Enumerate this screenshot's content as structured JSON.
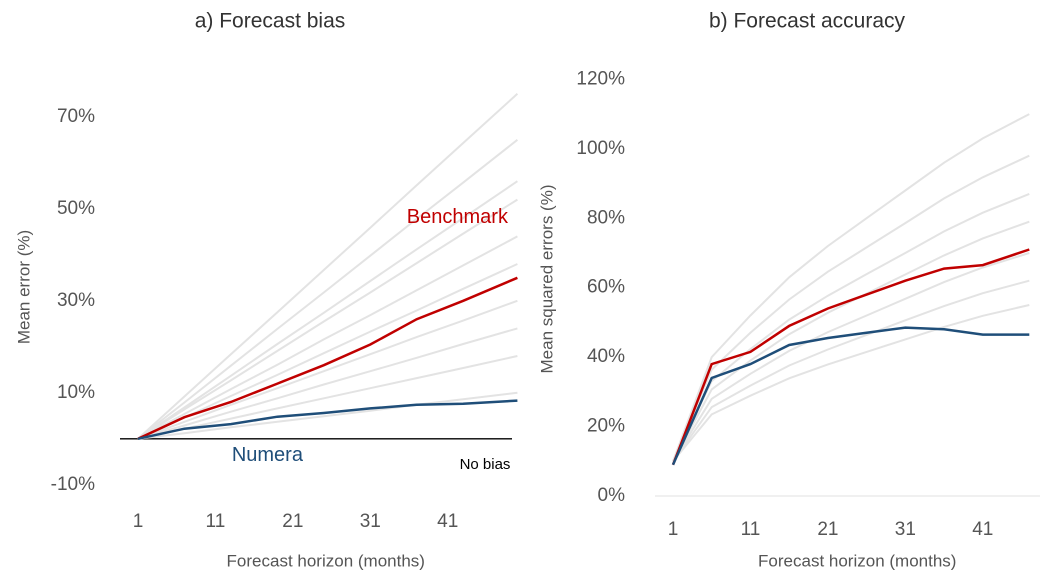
{
  "chart_data": [
    {
      "type": "line",
      "title": "a) Forecast bias",
      "xlabel": "Forecast horizon (months)",
      "ylabel": "Mean error (%)",
      "x": [
        1,
        7,
        13,
        19,
        25,
        31,
        37,
        43,
        50
      ],
      "xlim": [
        -1,
        51.5
      ],
      "xticks": [
        1,
        11,
        21,
        31,
        41
      ],
      "ylim": [
        -12,
        78
      ],
      "yticks": [
        {
          "value": -10,
          "label": "-10%"
        },
        {
          "value": 10,
          "label": "10%"
        },
        {
          "value": 30,
          "label": "30%"
        },
        {
          "value": 50,
          "label": "50%"
        },
        {
          "value": 70,
          "label": "70%"
        }
      ],
      "zero_line_color": "#000000",
      "annotation": "No bias",
      "series": [
        {
          "color": "#e3e3e3",
          "values": [
            0,
            9.2,
            18.4,
            27.5,
            36.7,
            45.9,
            55.1,
            64.3,
            75
          ]
        },
        {
          "color": "#e3e3e3",
          "values": [
            0,
            7.9,
            15.9,
            23.9,
            31.8,
            39.8,
            47.8,
            55.7,
            65
          ]
        },
        {
          "color": "#e3e3e3",
          "values": [
            0,
            6.8,
            13.7,
            20.6,
            27.4,
            34.3,
            41.2,
            48,
            56
          ]
        },
        {
          "color": "#e3e3e3",
          "values": [
            0,
            6.4,
            12.7,
            19.1,
            25.5,
            31.8,
            38.2,
            44.6,
            52
          ]
        },
        {
          "color": "#e3e3e3",
          "values": [
            0,
            5.4,
            10.8,
            16.1,
            21.6,
            26.9,
            32.3,
            37.7,
            44
          ]
        },
        {
          "color": "#e3e3e3",
          "values": [
            0,
            4.6,
            9.3,
            13.9,
            18.6,
            23.3,
            27.9,
            32.6,
            38
          ]
        },
        {
          "color": "#e3e3e3",
          "values": [
            0,
            3.7,
            7.4,
            11,
            14.7,
            18.4,
            22.1,
            25.7,
            30
          ]
        },
        {
          "color": "#e3e3e3",
          "values": [
            0,
            2.9,
            5.9,
            8.8,
            11.8,
            14.7,
            17.6,
            20.6,
            24
          ]
        },
        {
          "color": "#e3e3e3",
          "values": [
            0,
            2.2,
            4.4,
            6.6,
            8.8,
            11,
            13.2,
            15.4,
            18
          ]
        },
        {
          "color": "#e3e3e3",
          "values": [
            0,
            1.2,
            2.5,
            3.7,
            4.9,
            6.1,
            7.4,
            8.6,
            10
          ]
        },
        {
          "name": "Benchmark",
          "color": "#c00000",
          "values": [
            0,
            4.7,
            8,
            12,
            16,
            20.5,
            26,
            30,
            35
          ]
        },
        {
          "name": "Numera",
          "color": "#1f4e79",
          "values": [
            0,
            2.2,
            3.2,
            4.8,
            5.6,
            6.6,
            7.4,
            7.6,
            8.3
          ]
        }
      ]
    },
    {
      "type": "line",
      "title": "b) Forecast accuracy",
      "xlabel": "Forecast horizon (months)",
      "ylabel": "Mean squared errors (%)",
      "x": [
        1,
        6,
        11,
        16,
        21,
        26,
        31,
        36,
        41,
        47
      ],
      "xlim": [
        -1,
        48
      ],
      "xticks": [
        1,
        11,
        21,
        31,
        41
      ],
      "ylim": [
        0,
        125
      ],
      "yticks": [
        {
          "value": 0,
          "label": "0%"
        },
        {
          "value": 20,
          "label": "20%"
        },
        {
          "value": 40,
          "label": "40%"
        },
        {
          "value": 60,
          "label": "60%"
        },
        {
          "value": 80,
          "label": "80%"
        },
        {
          "value": 100,
          "label": "100%"
        },
        {
          "value": 120,
          "label": "120%"
        }
      ],
      "zero_line_color": "#e6e6e6",
      "series": [
        {
          "color": "#e3e3e3",
          "values": [
            10,
            40,
            52,
            63,
            72,
            80,
            88,
            96,
            103,
            110
          ]
        },
        {
          "color": "#e3e3e3",
          "values": [
            10,
            36.4,
            47,
            56.6,
            64.6,
            71.6,
            78.6,
            85.7,
            91.8,
            98
          ]
        },
        {
          "color": "#e3e3e3",
          "values": [
            10,
            33.1,
            42.3,
            50.8,
            57.7,
            63.9,
            70,
            76.2,
            81.6,
            87
          ]
        },
        {
          "color": "#e3e3e3",
          "values": [
            10,
            30.7,
            39,
            46.6,
            52.8,
            58.3,
            63.8,
            69.3,
            74.2,
            79
          ]
        },
        {
          "color": "#e3e3e3",
          "values": [
            10,
            28,
            35.2,
            41.8,
            47.2,
            52,
            56.8,
            61.6,
            65.8,
            70
          ]
        },
        {
          "color": "#e3e3e3",
          "values": [
            10,
            25.6,
            31.8,
            37.6,
            42.2,
            46.4,
            50.6,
            54.7,
            58.4,
            62
          ]
        },
        {
          "color": "#e3e3e3",
          "values": [
            10,
            23.5,
            28.9,
            33.9,
            37.9,
            41.5,
            45.1,
            48.7,
            51.9,
            55
          ]
        },
        {
          "color": "#c00000",
          "values": [
            9,
            38,
            41.5,
            49,
            54,
            58,
            62,
            65.5,
            66.5,
            71
          ]
        },
        {
          "color": "#1f4e79",
          "values": [
            9,
            34,
            38,
            43.5,
            45.5,
            47,
            48.5,
            48,
            46.5,
            46.5
          ]
        }
      ]
    }
  ]
}
